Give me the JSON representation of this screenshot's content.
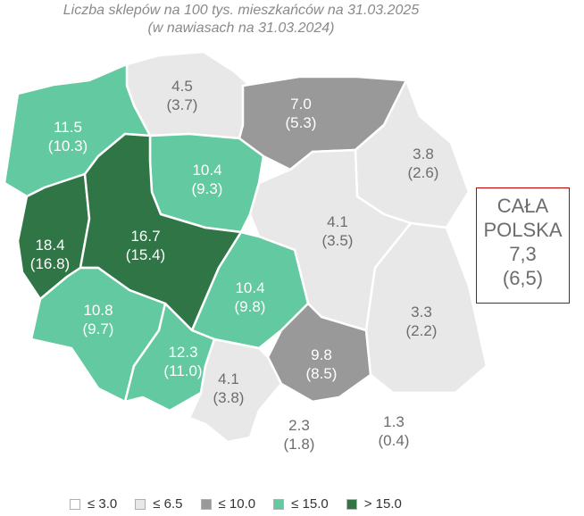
{
  "title": "Liczba sklepów na 100 tys. mieszkańców na 31.03.2025",
  "subtitle": "(w nawiasach na 31.03.2024)",
  "colors": {
    "c1": "#ffffff",
    "c2": "#e8e8e8",
    "c3": "#999999",
    "c4": "#63c9a0",
    "c5": "#2f7545",
    "border": "#c00000"
  },
  "regions": [
    {
      "id": "pomorskie",
      "value": "4.5",
      "prev": "(3.7)",
      "cls": 2
    },
    {
      "id": "warminsko-mazurskie",
      "value": "7.0",
      "prev": "(5.3)",
      "cls": 3
    },
    {
      "id": "zachodniopomorskie",
      "value": "11.5",
      "prev": "(10.3)",
      "cls": 4
    },
    {
      "id": "kujawsko-pomorskie",
      "value": "10.4",
      "prev": "(9.3)",
      "cls": 4
    },
    {
      "id": "podlaskie",
      "value": "3.8",
      "prev": "(2.6)",
      "cls": 2
    },
    {
      "id": "mazowieckie",
      "value": "4.1",
      "prev": "(3.5)",
      "cls": 2
    },
    {
      "id": "lubuskie",
      "value": "18.4",
      "prev": "(16.8)",
      "cls": 5
    },
    {
      "id": "wielkopolskie",
      "value": "16.7",
      "prev": "(15.4)",
      "cls": 5
    },
    {
      "id": "lodzkie",
      "value": "10.4",
      "prev": "(9.8)",
      "cls": 4
    },
    {
      "id": "lubelskie",
      "value": "3.3",
      "prev": "(2.2)",
      "cls": 2
    },
    {
      "id": "dolnoslaskie",
      "value": "10.8",
      "prev": "(9.7)",
      "cls": 4
    },
    {
      "id": "opolskie",
      "value": "12.3",
      "prev": "(11.0)",
      "cls": 4
    },
    {
      "id": "swietokrzyskie",
      "value": "9.8",
      "prev": "(8.5)",
      "cls": 3
    },
    {
      "id": "slaskie",
      "value": "4.1",
      "prev": "(3.8)",
      "cls": 2
    },
    {
      "id": "malopolskie",
      "value": "2.3",
      "prev": "(1.8)",
      "cls": 1
    },
    {
      "id": "podkarpackie",
      "value": "1.3",
      "prev": "(0.4)",
      "cls": 1
    }
  ],
  "summary": {
    "line1": "CAŁA",
    "line2": "POLSKA",
    "line3": "7,3",
    "line4": "(6,5)"
  },
  "legend": [
    {
      "label": "≤ 3.0",
      "cls": 1
    },
    {
      "label": "≤ 6.5",
      "cls": 2
    },
    {
      "label": "≤ 10.0",
      "cls": 3
    },
    {
      "label": "≤ 15.0",
      "cls": 4
    },
    {
      "label": "> 15.0",
      "cls": 5
    }
  ]
}
